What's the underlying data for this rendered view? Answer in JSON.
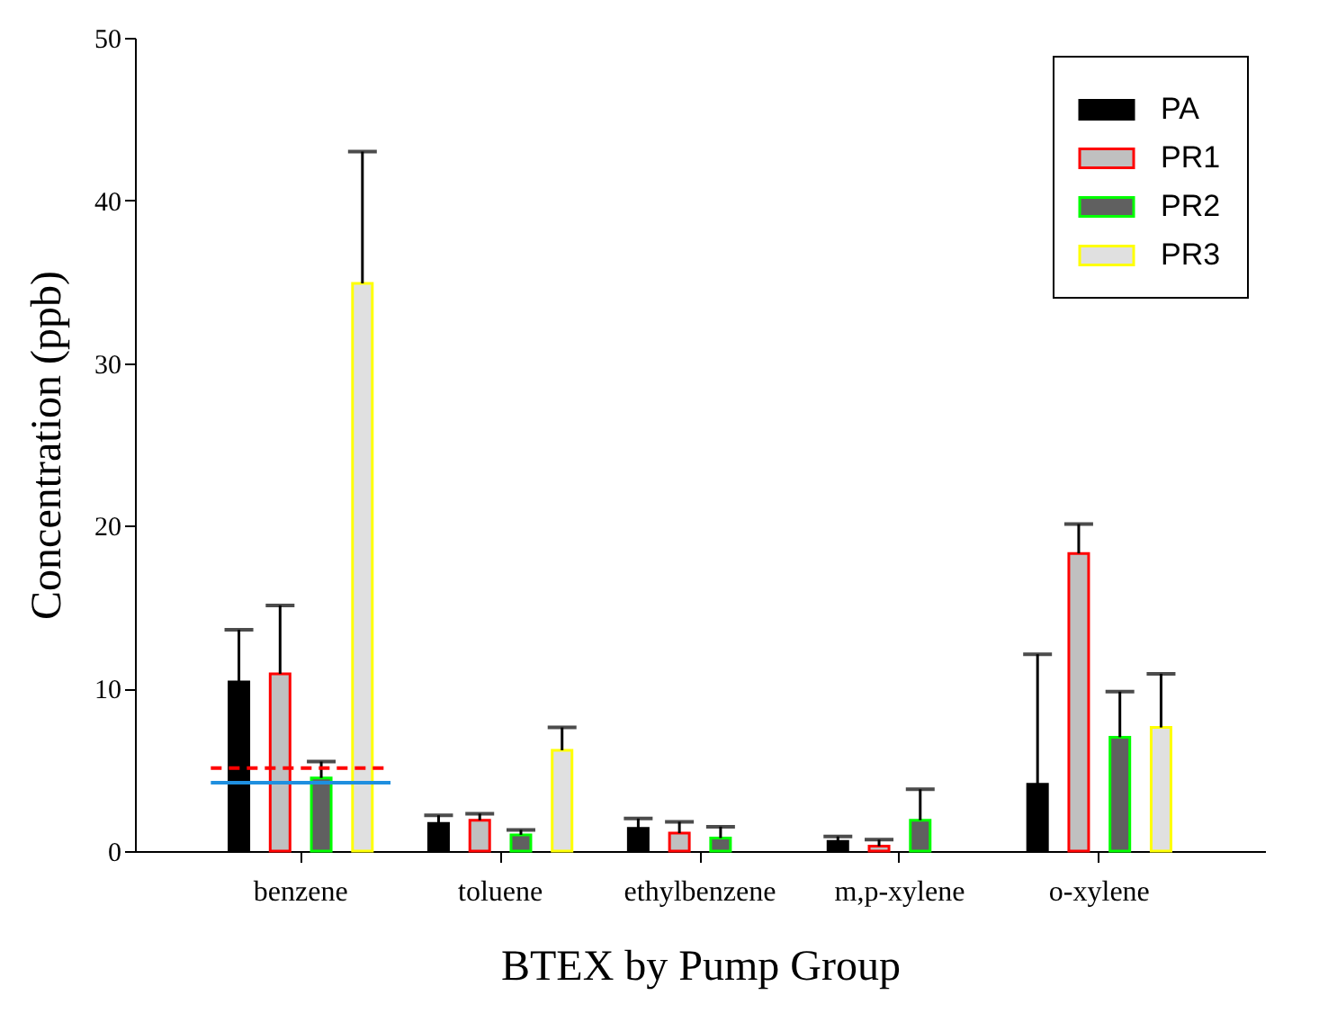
{
  "chart_data": {
    "type": "bar",
    "xlabel": "BTEX by Pump Group",
    "ylabel": "Concentration (ppb)",
    "categories": [
      "benzene",
      "toluene",
      "ethylbenzene",
      "m,p-xylene",
      "o-xylene"
    ],
    "series": [
      {
        "name": "PA",
        "color": "#000000",
        "values": [
          10.4,
          1.7,
          1.4,
          0.6,
          4.1
        ],
        "errors": [
          [
            10.4,
            13.6
          ],
          [
            1.7,
            2.2
          ],
          [
            1.4,
            2.0
          ],
          [
            0.6,
            0.9
          ],
          [
            4.1,
            12.1
          ]
        ]
      },
      {
        "name": "PR1",
        "color": "#c0c0c0",
        "values": [
          10.9,
          1.9,
          1.1,
          0.3,
          18.3
        ],
        "errors": [
          [
            10.9,
            15.1
          ],
          [
            1.9,
            2.3
          ],
          [
            1.1,
            1.8
          ],
          [
            0.3,
            0.7
          ],
          [
            18.3,
            20.1
          ]
        ]
      },
      {
        "name": "PR2",
        "color": "#606060",
        "values": [
          4.5,
          1.0,
          0.8,
          1.9,
          7.0
        ],
        "errors": [
          [
            4.5,
            5.5
          ],
          [
            1.0,
            1.3
          ],
          [
            0.8,
            1.5
          ],
          [
            1.9,
            3.8
          ],
          [
            7.0,
            9.8
          ]
        ]
      },
      {
        "name": "PR3",
        "color": "#e0e0e0",
        "values": [
          34.9,
          6.2,
          null,
          null,
          7.6
        ],
        "errors": [
          [
            34.9,
            43.0
          ],
          [
            6.2,
            7.6
          ],
          null,
          null,
          [
            7.6,
            10.9
          ]
        ]
      }
    ],
    "ylim": [
      0,
      50
    ],
    "yticks": [
      0,
      10,
      20,
      30,
      40,
      50
    ],
    "ref_lines": [
      {
        "axis": "y",
        "value": 5.1,
        "color": "#ff0000",
        "line_style": "dashed"
      },
      {
        "axis": "y",
        "value": 4.2,
        "color": "#1f8fdf",
        "line_style": "solid"
      }
    ],
    "grid": false,
    "legend": "top right"
  }
}
